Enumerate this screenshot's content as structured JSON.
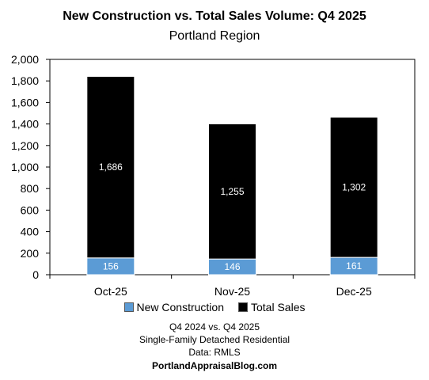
{
  "chart_data": {
    "type": "bar",
    "stacked": true,
    "title": "New Construction vs. Total Sales Volume: Q4 2025",
    "subtitle": "Portland Region",
    "categories": [
      "Oct-25",
      "Nov-25",
      "Dec-25"
    ],
    "series": [
      {
        "name": "New Construction",
        "values": [
          156,
          146,
          161
        ],
        "color": "#5b9bd5",
        "label_color": "#ffffff"
      },
      {
        "name": "Total Sales",
        "values": [
          1686,
          1255,
          1302
        ],
        "color": "#000000",
        "label_color": "#ffffff"
      }
    ],
    "data_labels": {
      "New Construction": [
        "156",
        "146",
        "161"
      ],
      "Total Sales": [
        "1,686",
        "1,255",
        "1,302"
      ]
    },
    "ylim": [
      0,
      2000
    ],
    "yticks": [
      0,
      200,
      400,
      600,
      800,
      1000,
      1200,
      1400,
      1600,
      1800,
      2000
    ],
    "ytick_labels": [
      "0",
      "200",
      "400",
      "600",
      "800",
      "1,000",
      "1,200",
      "1,400",
      "1,600",
      "1,800",
      "2,000"
    ],
    "grid": false,
    "legend_position": "bottom"
  },
  "footer": {
    "line1": "Q4 2024 vs. Q4 2025",
    "line2": "Single-Family Detached Residential",
    "line3": "Data: RMLS",
    "site": "PortlandAppraisalBlog.com"
  }
}
